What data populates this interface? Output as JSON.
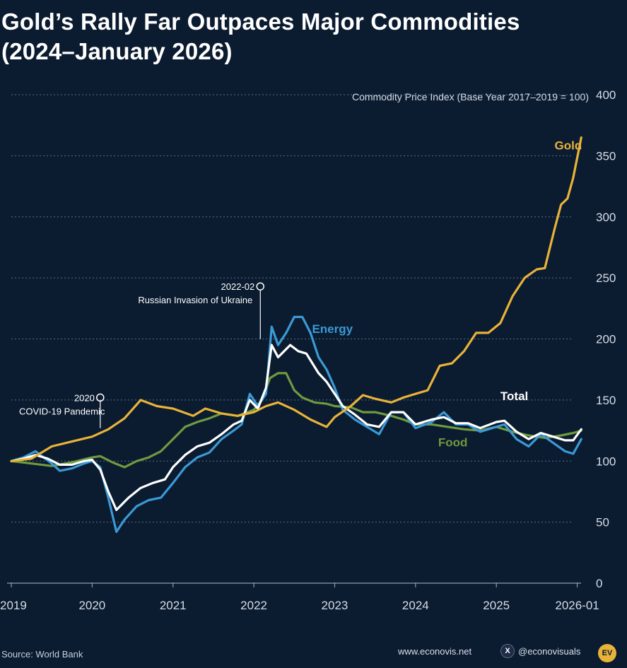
{
  "title_line1": "Gold’s Rally Far Outpaces Major Commodities",
  "title_line2": "(2024–January 2026)",
  "colors": {
    "background": "#0b1b30",
    "gold": "#e8b339",
    "energy": "#3a9ad6",
    "total": "#ffffff",
    "food": "#6f9a3e",
    "grid": "#5c6e86",
    "axis_text": "#d6dde7"
  },
  "chart_data": {
    "type": "line",
    "ylabel": "Commodity Price Index (Base Year 2017–2019 = 100)",
    "ylim": [
      0,
      400
    ],
    "yticks": [
      0,
      50,
      100,
      150,
      200,
      250,
      300,
      350,
      400
    ],
    "xlim": [
      2019,
      2026.03
    ],
    "xticks": [
      {
        "value": 2019,
        "label": "2019"
      },
      {
        "value": 2020,
        "label": "2020"
      },
      {
        "value": 2021,
        "label": "2021"
      },
      {
        "value": 2022,
        "label": "2022"
      },
      {
        "value": 2023,
        "label": "2023"
      },
      {
        "value": 2024,
        "label": "2024"
      },
      {
        "value": 2025,
        "label": "2025"
      },
      {
        "value": 2026,
        "label": "2026-01"
      }
    ],
    "series": [
      {
        "name": "Gold",
        "color": "#e8b339",
        "label": "Gold",
        "label_x": 2025.72,
        "label_y": 355,
        "points": [
          [
            2019,
            100
          ],
          [
            2019.25,
            102
          ],
          [
            2019.5,
            112
          ],
          [
            2019.75,
            116
          ],
          [
            2020,
            120
          ],
          [
            2020.2,
            126
          ],
          [
            2020.4,
            135
          ],
          [
            2020.6,
            150
          ],
          [
            2020.8,
            145
          ],
          [
            2021,
            143
          ],
          [
            2021.25,
            137
          ],
          [
            2021.4,
            143
          ],
          [
            2021.6,
            139
          ],
          [
            2021.8,
            137
          ],
          [
            2022,
            140
          ],
          [
            2022.15,
            145
          ],
          [
            2022.3,
            148
          ],
          [
            2022.5,
            142
          ],
          [
            2022.7,
            134
          ],
          [
            2022.9,
            128
          ],
          [
            2023,
            136
          ],
          [
            2023.2,
            145
          ],
          [
            2023.35,
            154
          ],
          [
            2023.5,
            151
          ],
          [
            2023.7,
            148
          ],
          [
            2023.85,
            152
          ],
          [
            2024,
            155
          ],
          [
            2024.15,
            158
          ],
          [
            2024.3,
            178
          ],
          [
            2024.45,
            180
          ],
          [
            2024.6,
            190
          ],
          [
            2024.75,
            205
          ],
          [
            2024.9,
            205
          ],
          [
            2025.05,
            213
          ],
          [
            2025.2,
            235
          ],
          [
            2025.35,
            250
          ],
          [
            2025.5,
            257
          ],
          [
            2025.6,
            258
          ],
          [
            2025.72,
            290
          ],
          [
            2025.8,
            310
          ],
          [
            2025.88,
            315
          ],
          [
            2025.95,
            332
          ],
          [
            2026.05,
            365
          ]
        ]
      },
      {
        "name": "Energy",
        "color": "#3a9ad6",
        "label": "Energy",
        "label_x": 2022.72,
        "label_y": 205,
        "points": [
          [
            2019,
            100
          ],
          [
            2019.15,
            103
          ],
          [
            2019.3,
            108
          ],
          [
            2019.4,
            103
          ],
          [
            2019.5,
            98
          ],
          [
            2019.6,
            92
          ],
          [
            2019.75,
            94
          ],
          [
            2019.9,
            98
          ],
          [
            2020,
            100
          ],
          [
            2020.1,
            95
          ],
          [
            2020.2,
            70
          ],
          [
            2020.3,
            42
          ],
          [
            2020.4,
            52
          ],
          [
            2020.55,
            63
          ],
          [
            2020.7,
            68
          ],
          [
            2020.85,
            70
          ],
          [
            2021,
            82
          ],
          [
            2021.15,
            95
          ],
          [
            2021.3,
            103
          ],
          [
            2021.45,
            107
          ],
          [
            2021.6,
            118
          ],
          [
            2021.75,
            125
          ],
          [
            2021.85,
            130
          ],
          [
            2021.95,
            155
          ],
          [
            2022.05,
            145
          ],
          [
            2022.15,
            155
          ],
          [
            2022.22,
            210
          ],
          [
            2022.3,
            195
          ],
          [
            2022.4,
            205
          ],
          [
            2022.5,
            218
          ],
          [
            2022.6,
            218
          ],
          [
            2022.7,
            205
          ],
          [
            2022.8,
            185
          ],
          [
            2022.9,
            175
          ],
          [
            2023,
            160
          ],
          [
            2023.1,
            142
          ],
          [
            2023.25,
            134
          ],
          [
            2023.4,
            128
          ],
          [
            2023.55,
            122
          ],
          [
            2023.7,
            140
          ],
          [
            2023.85,
            140
          ],
          [
            2024,
            127
          ],
          [
            2024.2,
            132
          ],
          [
            2024.35,
            140
          ],
          [
            2024.5,
            130
          ],
          [
            2024.65,
            130
          ],
          [
            2024.8,
            124
          ],
          [
            2025,
            128
          ],
          [
            2025.1,
            130
          ],
          [
            2025.25,
            118
          ],
          [
            2025.4,
            112
          ],
          [
            2025.55,
            122
          ],
          [
            2025.7,
            115
          ],
          [
            2025.85,
            108
          ],
          [
            2025.95,
            106
          ],
          [
            2026.05,
            118
          ]
        ]
      },
      {
        "name": "Total",
        "color": "#ffffff",
        "label": "Total",
        "label_x": 2025.05,
        "label_y": 150,
        "points": [
          [
            2019,
            100
          ],
          [
            2019.15,
            102
          ],
          [
            2019.3,
            105
          ],
          [
            2019.45,
            102
          ],
          [
            2019.6,
            97
          ],
          [
            2019.75,
            97
          ],
          [
            2019.9,
            100
          ],
          [
            2020,
            101
          ],
          [
            2020.1,
            93
          ],
          [
            2020.2,
            75
          ],
          [
            2020.3,
            60
          ],
          [
            2020.45,
            70
          ],
          [
            2020.6,
            78
          ],
          [
            2020.75,
            82
          ],
          [
            2020.9,
            85
          ],
          [
            2021,
            95
          ],
          [
            2021.15,
            105
          ],
          [
            2021.3,
            112
          ],
          [
            2021.45,
            115
          ],
          [
            2021.6,
            122
          ],
          [
            2021.75,
            130
          ],
          [
            2021.85,
            133
          ],
          [
            2021.95,
            150
          ],
          [
            2022.05,
            143
          ],
          [
            2022.15,
            160
          ],
          [
            2022.22,
            195
          ],
          [
            2022.3,
            185
          ],
          [
            2022.45,
            195
          ],
          [
            2022.55,
            190
          ],
          [
            2022.65,
            188
          ],
          [
            2022.8,
            172
          ],
          [
            2022.9,
            165
          ],
          [
            2023,
            155
          ],
          [
            2023.1,
            145
          ],
          [
            2023.25,
            138
          ],
          [
            2023.4,
            130
          ],
          [
            2023.55,
            128
          ],
          [
            2023.7,
            140
          ],
          [
            2023.85,
            140
          ],
          [
            2024,
            130
          ],
          [
            2024.2,
            134
          ],
          [
            2024.35,
            136
          ],
          [
            2024.5,
            131
          ],
          [
            2024.65,
            131
          ],
          [
            2024.8,
            127
          ],
          [
            2025,
            132
          ],
          [
            2025.1,
            133
          ],
          [
            2025.25,
            124
          ],
          [
            2025.4,
            118
          ],
          [
            2025.55,
            123
          ],
          [
            2025.7,
            120
          ],
          [
            2025.85,
            117
          ],
          [
            2025.95,
            117
          ],
          [
            2026.05,
            126
          ]
        ]
      },
      {
        "name": "Food",
        "color": "#6f9a3e",
        "label": "Food",
        "label_x": 2024.28,
        "label_y": 112,
        "points": [
          [
            2019,
            100
          ],
          [
            2019.25,
            98
          ],
          [
            2019.5,
            96
          ],
          [
            2019.75,
            99
          ],
          [
            2020,
            103
          ],
          [
            2020.1,
            104
          ],
          [
            2020.25,
            99
          ],
          [
            2020.4,
            95
          ],
          [
            2020.55,
            100
          ],
          [
            2020.7,
            103
          ],
          [
            2020.85,
            108
          ],
          [
            2021,
            118
          ],
          [
            2021.15,
            128
          ],
          [
            2021.3,
            132
          ],
          [
            2021.45,
            135
          ],
          [
            2021.6,
            139
          ],
          [
            2021.8,
            137
          ],
          [
            2022,
            142
          ],
          [
            2022.1,
            150
          ],
          [
            2022.2,
            168
          ],
          [
            2022.3,
            172
          ],
          [
            2022.4,
            172
          ],
          [
            2022.5,
            158
          ],
          [
            2022.6,
            152
          ],
          [
            2022.75,
            148
          ],
          [
            2022.9,
            147
          ],
          [
            2023,
            145
          ],
          [
            2023.2,
            144
          ],
          [
            2023.35,
            140
          ],
          [
            2023.5,
            140
          ],
          [
            2023.7,
            137
          ],
          [
            2023.85,
            134
          ],
          [
            2024,
            130
          ],
          [
            2024.2,
            130
          ],
          [
            2024.4,
            128
          ],
          [
            2024.6,
            126
          ],
          [
            2024.8,
            125
          ],
          [
            2025,
            128
          ],
          [
            2025.2,
            124
          ],
          [
            2025.4,
            121
          ],
          [
            2025.6,
            119
          ],
          [
            2025.8,
            121
          ],
          [
            2025.95,
            123
          ],
          [
            2026.05,
            125
          ]
        ]
      }
    ],
    "annotations": [
      {
        "date": "2022-02",
        "text": "Russian Invasion of Ukraine",
        "x": 2022.08,
        "y": 243
      },
      {
        "date": "2020",
        "text": "COVID-19 Pandemic",
        "x": 2020.1,
        "y": 152
      }
    ]
  },
  "footer": {
    "source": "Source: World Bank",
    "site": "www.econovis.net",
    "social_icon": "x-icon",
    "social_handle": "@econovisuals",
    "logo_text": "EV"
  }
}
